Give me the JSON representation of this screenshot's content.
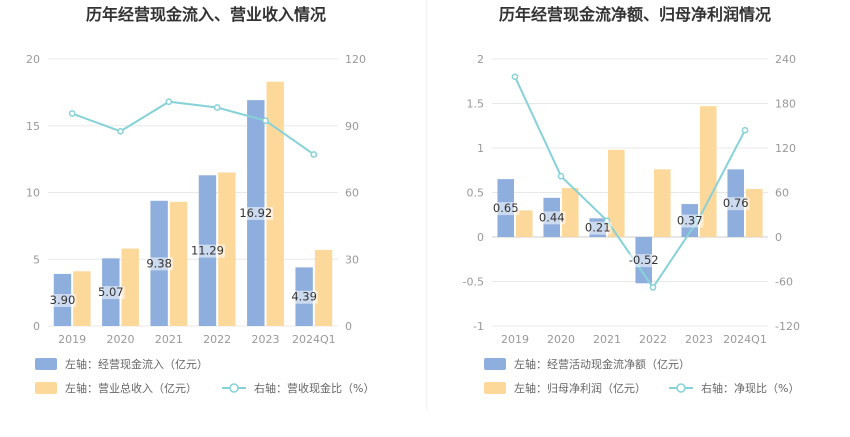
{
  "colors": {
    "bar_blue": "#8eaedd",
    "bar_orange": "#fdd89b",
    "line_cyan": "#86d2d8",
    "grid": "#e8e8e8",
    "divider": "#eeeeee"
  },
  "chart_data": [
    {
      "type": "bar+line",
      "title": "历年经营现金流入、营业收入情况",
      "categories": [
        "2019",
        "2020",
        "2021",
        "2022",
        "2023",
        "2024Q1"
      ],
      "left_axis": {
        "range": [
          0,
          20
        ],
        "ticks": [
          "0",
          "5",
          "10",
          "15",
          "20"
        ]
      },
      "right_axis": {
        "range": [
          0,
          120
        ],
        "ticks": [
          "0",
          "30",
          "60",
          "90",
          "120"
        ]
      },
      "series": [
        {
          "name": "左轴：经营现金流入（亿元）",
          "kind": "bar",
          "axis": "left",
          "values": [
            3.9,
            5.07,
            9.38,
            11.29,
            16.92,
            4.39
          ],
          "labels": [
            "3.90",
            "5.07",
            "9.38",
            "11.29",
            "16.92",
            "4.39"
          ]
        },
        {
          "name": "左轴：营业总收入（亿元）",
          "kind": "bar",
          "axis": "left",
          "values": [
            4.1,
            5.8,
            9.3,
            11.5,
            18.3,
            5.7
          ]
        },
        {
          "name": "右轴：营收现金比（%）",
          "kind": "line",
          "axis": "right",
          "values": [
            95.5,
            87.5,
            100.8,
            98.2,
            92.3,
            77.1
          ]
        }
      ],
      "legend_position": "bottom",
      "grid": true
    },
    {
      "type": "bar+line",
      "title": "历年经营现金流净额、归母净利润情况",
      "categories": [
        "2019",
        "2020",
        "2021",
        "2022",
        "2023",
        "2024Q1"
      ],
      "left_axis": {
        "range": [
          -1,
          2
        ],
        "ticks": [
          "-1",
          "-0.5",
          "0",
          "0.5",
          "1",
          "1.5",
          "2"
        ]
      },
      "right_axis": {
        "range": [
          -120,
          240
        ],
        "ticks": [
          "-120",
          "-60",
          "0",
          "60",
          "120",
          "180",
          "240"
        ]
      },
      "series": [
        {
          "name": "左轴：经营活动现金流净额（亿元）",
          "kind": "bar",
          "axis": "left",
          "values": [
            0.65,
            0.44,
            0.21,
            -0.52,
            0.37,
            0.76
          ],
          "labels": [
            "0.65",
            "0.44",
            "0.21",
            "-0.52",
            "0.37",
            "0.76"
          ]
        },
        {
          "name": "左轴：归母净利润（亿元）",
          "kind": "bar",
          "axis": "left",
          "values": [
            0.3,
            0.55,
            0.98,
            0.76,
            1.47,
            0.54
          ]
        },
        {
          "name": "右轴：净现比（%）",
          "kind": "line",
          "axis": "right",
          "values": [
            216,
            82,
            22,
            -68,
            25,
            144
          ]
        }
      ],
      "legend_position": "bottom",
      "grid": true
    }
  ]
}
